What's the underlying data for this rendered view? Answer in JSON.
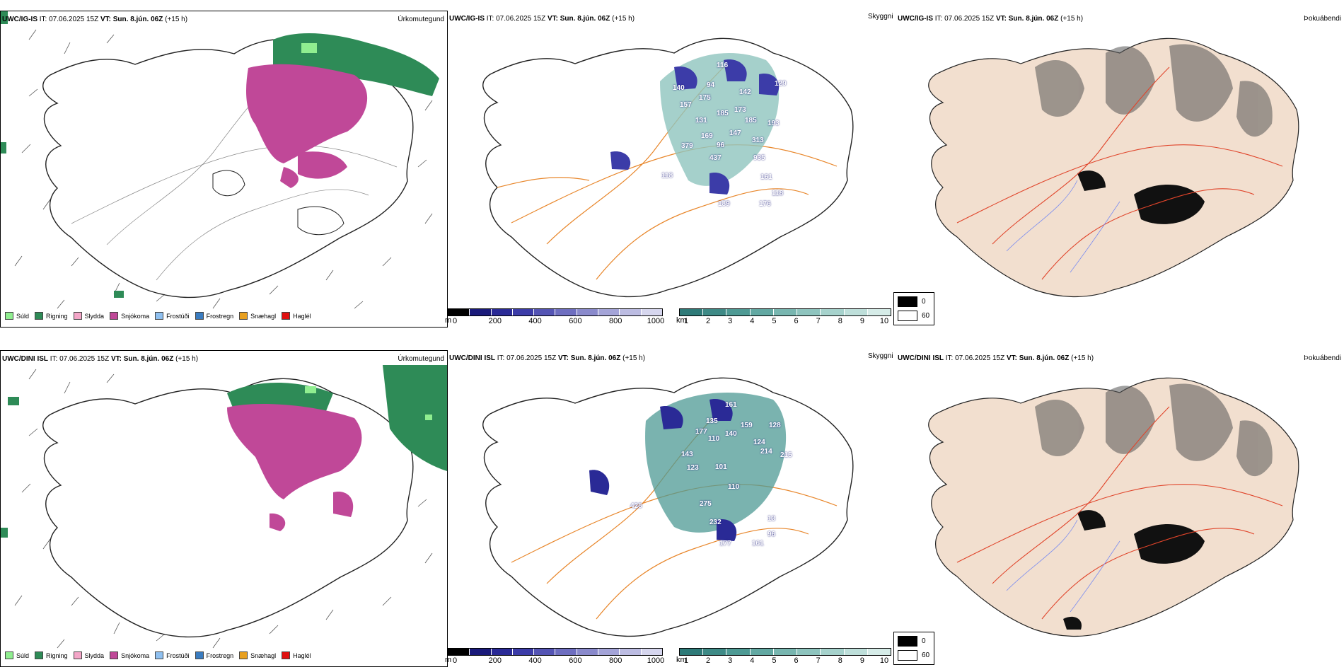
{
  "rows": [
    {
      "model": "UWC/IG-IS",
      "it_label": "IT:",
      "it_value": "07.06.2025 15Z",
      "vt_label": "VT:",
      "vt_value": "Sun. 8.jún. 06Z",
      "lead": "(+15 h)",
      "precip_labels": [
        {
          "value": "116"
        },
        {
          "value": "94"
        },
        {
          "value": "142"
        },
        {
          "value": "129"
        },
        {
          "value": "140"
        },
        {
          "value": "175"
        },
        {
          "value": "157"
        },
        {
          "value": "185"
        },
        {
          "value": "131"
        },
        {
          "value": "173"
        },
        {
          "value": "185"
        },
        {
          "value": "193"
        },
        {
          "value": "147"
        },
        {
          "value": "96"
        },
        {
          "value": "313"
        },
        {
          "value": "379"
        },
        {
          "value": "169"
        },
        {
          "value": "437"
        },
        {
          "value": "935"
        },
        {
          "value": "118"
        },
        {
          "value": "161"
        },
        {
          "value": "118"
        },
        {
          "value": "176"
        },
        {
          "value": "189"
        }
      ]
    },
    {
      "model": "UWC/DINI ISL",
      "it_label": "IT:",
      "it_value": "07.06.2025 15Z",
      "vt_label": "VT:",
      "vt_value": "Sun. 8.jún. 06Z",
      "lead": "(+15 h)",
      "precip_labels": [
        {
          "value": "161"
        },
        {
          "value": "135"
        },
        {
          "value": "159"
        },
        {
          "value": "128"
        },
        {
          "value": "140"
        },
        {
          "value": "110"
        },
        {
          "value": "177"
        },
        {
          "value": "124"
        },
        {
          "value": "214"
        },
        {
          "value": "215"
        },
        {
          "value": "143"
        },
        {
          "value": "123"
        },
        {
          "value": "101"
        },
        {
          "value": "110"
        },
        {
          "value": "275"
        },
        {
          "value": "428"
        },
        {
          "value": "232"
        },
        {
          "value": "13"
        },
        {
          "value": "96"
        },
        {
          "value": "161"
        },
        {
          "value": "177"
        }
      ]
    }
  ],
  "panels": {
    "precip_type": "Úrkomutegund",
    "cloud_base": "Skyggni",
    "fog": "Þokuábendi"
  },
  "precip_legend": [
    {
      "label": "Súld",
      "color": "#90ee90"
    },
    {
      "label": "Rigning",
      "color": "#2e8b57"
    },
    {
      "label": "Slydda",
      "color": "#f4a6c8"
    },
    {
      "label": "Snjókoma",
      "color": "#c04898"
    },
    {
      "label": "Frostúði",
      "color": "#8fc0f0"
    },
    {
      "label": "Frostregn",
      "color": "#3a7cc0"
    },
    {
      "label": "Snæhagl",
      "color": "#e8a020"
    },
    {
      "label": "Haglél",
      "color": "#e01010"
    }
  ],
  "colorbar_m": {
    "unit": "m",
    "ticks": [
      "0",
      "200",
      "400",
      "600",
      "800",
      "1000"
    ],
    "colors": [
      "#000000",
      "#1a1a7a",
      "#2a2a96",
      "#3c3ca8",
      "#5454b4",
      "#6e6ec0",
      "#8a8acc",
      "#a4a4d8",
      "#bcbce2",
      "#d6d6ee"
    ]
  },
  "colorbar_km": {
    "unit": "km",
    "ticks": [
      "1",
      "2",
      "3",
      "4",
      "5",
      "6",
      "7",
      "8",
      "9",
      "10"
    ],
    "colors": [
      "#2e7a78",
      "#3e8a86",
      "#4e9a94",
      "#62a8a2",
      "#78b6b0",
      "#8ec4be",
      "#a6d2cc",
      "#bedfda",
      "#d6ece8"
    ]
  },
  "fog_legend": [
    {
      "label": "0",
      "color": "#000000"
    },
    {
      "label": "60",
      "color": "#ffffff"
    }
  ]
}
